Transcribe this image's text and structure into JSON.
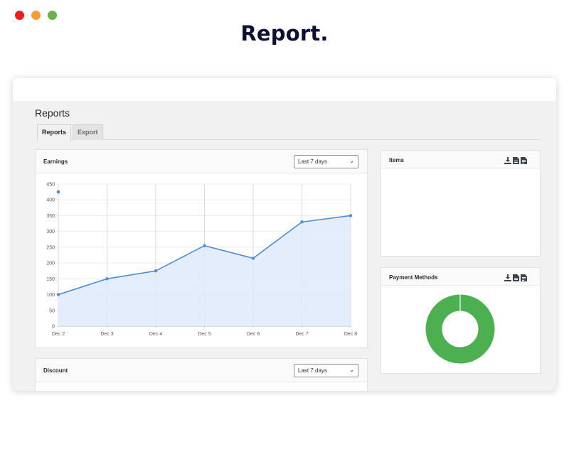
{
  "window_controls": {
    "close": "#ee1c1c",
    "minimize": "#f29d38",
    "zoom": "#6ab04c"
  },
  "hero": {
    "title": "Report."
  },
  "page": {
    "heading": "Reports",
    "tabs": [
      {
        "label": "Reports",
        "active": true
      },
      {
        "label": "Export",
        "active": false
      }
    ]
  },
  "earnings": {
    "title": "Earnings",
    "range": "Last 7 days"
  },
  "discount": {
    "title": "Discount",
    "range": "Last 7 days"
  },
  "items": {
    "title": "Items",
    "icons": [
      "download-icon",
      "csv-file-icon",
      "pdf-file-icon"
    ]
  },
  "payment_methods": {
    "title": "Payment Methods",
    "icons": [
      "download-icon",
      "csv-file-icon",
      "pdf-file-icon"
    ],
    "donut_color": "#4caf50"
  },
  "colors": {
    "accent_line": "#4a8fd6",
    "area_fill": "#deeafc",
    "dark_text": "#0e1033"
  },
  "chart_data": {
    "type": "area",
    "categories": [
      "Dec 2",
      "Dec 3",
      "Dec 4",
      "Dec 5",
      "Dec 6",
      "Dec 7",
      "Dec 8"
    ],
    "values": [
      100,
      150,
      175,
      255,
      215,
      330,
      350
    ],
    "y_ticks": [
      0,
      50,
      100,
      150,
      200,
      250,
      300,
      350,
      400,
      450
    ],
    "ylim": [
      0,
      450
    ],
    "grid": true,
    "title": "",
    "xlabel": "",
    "ylabel": ""
  }
}
